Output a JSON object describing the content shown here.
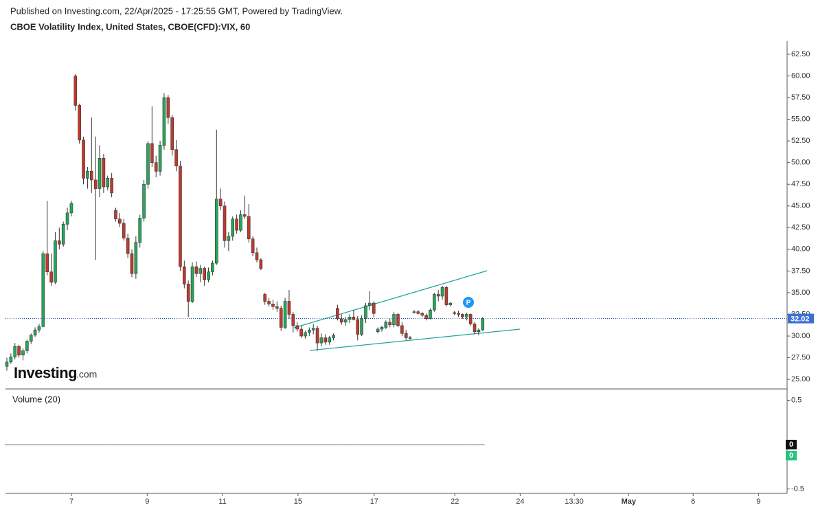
{
  "header": {
    "published": "Published on Investing.com, 22/Apr/2025 - 17:25:55 GMT, Powered by TradingView.",
    "title": "CBOE Volatility Index, United States, CBOE(CFD):VIX, 60"
  },
  "logo": {
    "name": "Investing",
    "suffix": ".com"
  },
  "chart_data": {
    "type": "candlestick",
    "up_color": "#26a65b",
    "down_color": "#c0392b",
    "xlim": [
      -0.34,
      193.5
    ],
    "xticks": [
      {
        "value": 16.0,
        "label": "7"
      },
      {
        "value": 34.8,
        "label": "9"
      },
      {
        "value": 53.5,
        "label": "11"
      },
      {
        "value": 72.2,
        "label": "15"
      },
      {
        "value": 91.1,
        "label": "17"
      },
      {
        "value": 111.1,
        "label": "22"
      },
      {
        "value": 127.3,
        "label": "24"
      },
      {
        "value": 140.7,
        "label": "13:30"
      },
      {
        "value": 154.2,
        "label": "May"
      },
      {
        "value": 170.2,
        "label": "6"
      },
      {
        "value": 186.4,
        "label": "9"
      }
    ],
    "ylim": [
      23.9,
      64.0
    ],
    "yticks": [
      {
        "value": 25,
        "label": "25.00"
      },
      {
        "value": 27.5,
        "label": "27.50"
      },
      {
        "value": 30,
        "label": "30.00"
      },
      {
        "value": 32.5,
        "label": "32.50"
      },
      {
        "value": 35,
        "label": "35.00"
      },
      {
        "value": 37.5,
        "label": "37.50"
      },
      {
        "value": 40,
        "label": "40.00"
      },
      {
        "value": 42.5,
        "label": "42.50"
      },
      {
        "value": 45,
        "label": "45.00"
      },
      {
        "value": 47.5,
        "label": "47.50"
      },
      {
        "value": 50,
        "label": "50.00"
      },
      {
        "value": 52.5,
        "label": "52.50"
      },
      {
        "value": 55,
        "label": "55.00"
      },
      {
        "value": 57.5,
        "label": "57.50"
      },
      {
        "value": 60,
        "label": "60.00"
      },
      {
        "value": 62.5,
        "label": "62.50"
      }
    ],
    "last_price": 32.02,
    "badge": "P",
    "open": [
      26.5,
      27.0,
      27.6,
      28.8,
      27.8,
      28.3,
      29.4,
      30.1,
      30.7,
      31.1,
      39.5,
      37.4,
      36.2,
      41.0,
      40.6,
      42.9,
      44.2,
      60.0,
      56.6,
      52.6,
      48.2,
      49.0,
      48.0,
      47.0,
      50.5,
      47.2,
      48.2,
      44.5,
      43.5,
      43.0,
      41.3,
      39.5,
      37.2,
      40.8,
      43.6,
      47.5,
      52.2,
      50.0,
      49.0,
      52.0,
      57.5,
      55.2,
      51.5,
      49.6,
      38.0,
      36.0,
      34.0,
      38.0,
      37.2,
      37.8,
      36.5,
      37.4,
      38.4,
      45.8,
      45.0,
      41.0,
      41.5,
      43.5,
      42.2,
      44.0,
      43.8,
      41.2,
      39.6,
      38.8,
      34.8,
      34.0,
      33.7,
      33.4,
      33.2,
      31.0,
      34.0,
      32.5,
      31.2,
      30.8,
      30.0,
      30.4,
      30.7,
      30.9,
      29.2,
      29.8,
      29.3,
      29.8,
      33.2,
      32.0,
      31.6,
      31.9,
      32.2,
      31.9,
      30.2,
      32.0,
      33.5,
      33.8,
      30.5,
      30.8,
      31.0,
      31.6,
      31.3,
      32.5,
      31.2,
      30.3,
      29.8,
      32.8,
      32.8,
      32.6,
      32.4,
      32.0,
      33.0,
      34.8,
      34.6,
      35.6,
      33.6,
      32.7,
      32.6,
      32.5,
      32.2,
      32.5,
      31.4,
      30.5,
      30.7
    ],
    "high": [
      27.5,
      28.0,
      29.2,
      29.0,
      28.6,
      29.6,
      30.3,
      31.0,
      31.4,
      39.8,
      45.6,
      39.5,
      42.0,
      42.5,
      43.2,
      44.8,
      45.6,
      60.2,
      56.8,
      53.0,
      49.5,
      55.2,
      53.0,
      52.0,
      51.0,
      48.5,
      48.8,
      44.8,
      44.2,
      43.5,
      41.8,
      40.0,
      41.5,
      44.0,
      48.0,
      52.5,
      56.5,
      50.8,
      52.5,
      58.0,
      57.8,
      55.5,
      52.6,
      50.2,
      38.7,
      36.4,
      38.5,
      38.6,
      38.2,
      38.0,
      37.9,
      38.7,
      53.8,
      47.0,
      45.5,
      42.0,
      43.8,
      44.0,
      44.5,
      46.2,
      45.2,
      41.5,
      40.2,
      39.0,
      35.0,
      34.4,
      34.2,
      34.0,
      33.5,
      34.4,
      35.3,
      32.8,
      31.6,
      31.2,
      30.6,
      31.0,
      31.4,
      31.2,
      30.3,
      30.2,
      30.0,
      30.3,
      33.6,
      32.5,
      32.2,
      32.5,
      33.0,
      32.3,
      32.4,
      33.8,
      35.2,
      34.0,
      31.0,
      31.2,
      31.8,
      32.0,
      32.8,
      32.7,
      31.6,
      30.7,
      30.0,
      33.0,
      33.0,
      32.8,
      32.6,
      33.2,
      35.0,
      35.3,
      35.8,
      35.8,
      33.9,
      32.9,
      32.9,
      32.6,
      32.7,
      32.6,
      31.6,
      30.9,
      32.2
    ],
    "low": [
      26.0,
      26.8,
      27.3,
      27.5,
      27.2,
      28.0,
      29.1,
      29.9,
      30.4,
      31.0,
      37.0,
      35.8,
      36.0,
      40.0,
      40.3,
      42.2,
      43.8,
      56.0,
      52.2,
      47.5,
      47.0,
      46.5,
      38.8,
      46.0,
      46.5,
      46.8,
      46.0,
      43.2,
      42.6,
      41.0,
      39.0,
      36.8,
      36.6,
      40.2,
      43.2,
      47.0,
      49.5,
      48.3,
      48.5,
      51.5,
      54.5,
      50.8,
      49.0,
      37.5,
      35.5,
      32.2,
      33.8,
      36.8,
      36.2,
      35.8,
      36.2,
      37.0,
      38.2,
      44.5,
      40.2,
      39.8,
      41.0,
      41.8,
      42.0,
      43.5,
      40.8,
      39.2,
      38.5,
      37.6,
      33.6,
      33.4,
      33.0,
      32.8,
      30.6,
      30.8,
      32.0,
      30.4,
      30.5,
      29.8,
      29.7,
      30.0,
      30.2,
      28.3,
      28.8,
      29.0,
      29.0,
      29.5,
      31.8,
      31.3,
      31.2,
      31.5,
      31.8,
      29.5,
      30.0,
      31.5,
      33.0,
      32.2,
      30.3,
      30.5,
      30.8,
      31.0,
      31.0,
      31.0,
      30.0,
      29.5,
      29.6,
      32.6,
      32.5,
      32.2,
      31.8,
      31.9,
      32.8,
      34.0,
      34.2,
      33.4,
      33.4,
      32.4,
      32.2,
      32.0,
      31.8,
      31.2,
      30.2,
      30.1,
      30.6
    ],
    "close": [
      27.0,
      27.6,
      28.8,
      27.8,
      28.3,
      29.4,
      30.1,
      30.7,
      31.1,
      39.5,
      37.4,
      36.2,
      41.0,
      40.6,
      42.9,
      44.2,
      45.3,
      56.6,
      52.6,
      48.2,
      49.0,
      48.0,
      47.0,
      50.5,
      47.2,
      48.2,
      46.5,
      43.5,
      43.0,
      41.3,
      39.5,
      37.2,
      40.8,
      43.6,
      47.5,
      52.2,
      50.0,
      49.0,
      52.0,
      57.5,
      55.2,
      51.5,
      49.6,
      38.0,
      36.0,
      34.0,
      38.0,
      37.2,
      37.8,
      36.5,
      37.4,
      38.4,
      45.8,
      45.0,
      41.0,
      41.5,
      43.5,
      42.2,
      44.0,
      43.8,
      41.2,
      39.6,
      38.8,
      37.8,
      34.0,
      33.7,
      33.4,
      33.2,
      31.0,
      34.0,
      32.5,
      31.2,
      30.8,
      30.0,
      30.4,
      30.7,
      30.9,
      29.2,
      29.8,
      29.3,
      29.8,
      30.1,
      32.0,
      31.6,
      31.9,
      32.2,
      31.9,
      30.2,
      32.0,
      33.5,
      33.8,
      32.6,
      30.8,
      31.0,
      31.6,
      31.3,
      32.5,
      31.2,
      30.3,
      29.8,
      29.8,
      32.8,
      32.6,
      32.4,
      32.0,
      33.0,
      34.8,
      34.6,
      35.6,
      33.6,
      33.8,
      32.6,
      32.5,
      32.2,
      32.5,
      31.4,
      30.5,
      30.7,
      32.02
    ],
    "volume": {
      "title": "Volume (20)",
      "ylim": [
        -0.55,
        0.62
      ],
      "yticks": [
        0.5,
        -0.5
      ],
      "last": 0,
      "ma_last": 0,
      "values": [
        0,
        0,
        0,
        0,
        0,
        0,
        0,
        0,
        0,
        0,
        0,
        0,
        0,
        0,
        0,
        0,
        0,
        0,
        0,
        0,
        0,
        0,
        0,
        0,
        0,
        0,
        0,
        0,
        0,
        0,
        0,
        0,
        0,
        0,
        0,
        0,
        0,
        0,
        0,
        0,
        0,
        0,
        0,
        0,
        0,
        0,
        0,
        0,
        0,
        0,
        0,
        0,
        0,
        0,
        0,
        0,
        0,
        0,
        0,
        0,
        0,
        0,
        0,
        0,
        0,
        0,
        0,
        0,
        0,
        0,
        0,
        0,
        0,
        0,
        0,
        0,
        0,
        0,
        0,
        0,
        0,
        0,
        0,
        0,
        0,
        0,
        0,
        0,
        0,
        0,
        0,
        0,
        0,
        0,
        0,
        0,
        0,
        0,
        0,
        0,
        0,
        0,
        0,
        0,
        0,
        0,
        0,
        0,
        0,
        0,
        0,
        0,
        0,
        0,
        0,
        0,
        0,
        0,
        0
      ]
    }
  }
}
